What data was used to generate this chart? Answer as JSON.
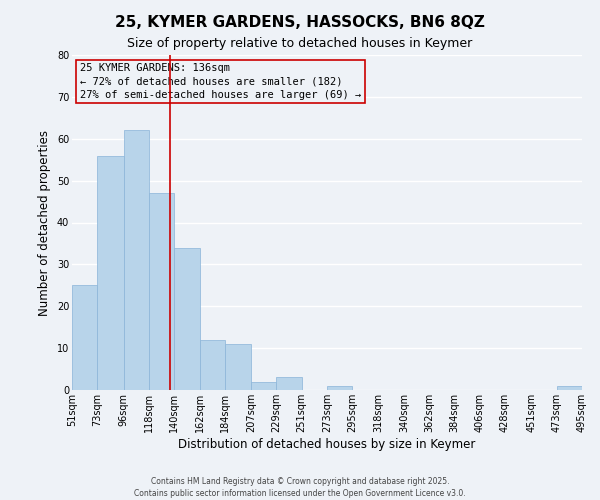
{
  "title": "25, KYMER GARDENS, HASSOCKS, BN6 8QZ",
  "subtitle": "Size of property relative to detached houses in Keymer",
  "xlabel": "Distribution of detached houses by size in Keymer",
  "ylabel": "Number of detached properties",
  "bin_edges": [
    51,
    73,
    96,
    118,
    140,
    162,
    184,
    207,
    229,
    251,
    273,
    295,
    318,
    340,
    362,
    384,
    406,
    428,
    451,
    473,
    495
  ],
  "heights": [
    25,
    56,
    62,
    47,
    34,
    12,
    11,
    2,
    3,
    0,
    1,
    0,
    0,
    0,
    0,
    0,
    0,
    0,
    0,
    1
  ],
  "bar_color": "#b8d4ea",
  "bar_edgecolor": "#8ab4d8",
  "vline_x": 136,
  "vline_color": "#cc0000",
  "annotation_title": "25 KYMER GARDENS: 136sqm",
  "annotation_line1": "← 72% of detached houses are smaller (182)",
  "annotation_line2": "27% of semi-detached houses are larger (69) →",
  "annotation_box_edgecolor": "#cc0000",
  "ylim": [
    0,
    80
  ],
  "yticks": [
    0,
    10,
    20,
    30,
    40,
    50,
    60,
    70,
    80
  ],
  "footer1": "Contains HM Land Registry data © Crown copyright and database right 2025.",
  "footer2": "Contains public sector information licensed under the Open Government Licence v3.0.",
  "bg_color": "#eef2f7",
  "grid_color": "#ffffff",
  "title_fontsize": 11,
  "subtitle_fontsize": 9,
  "tick_label_size": 7,
  "axis_label_size": 8.5,
  "footer_fontsize": 5.5,
  "annot_fontsize": 7.5
}
